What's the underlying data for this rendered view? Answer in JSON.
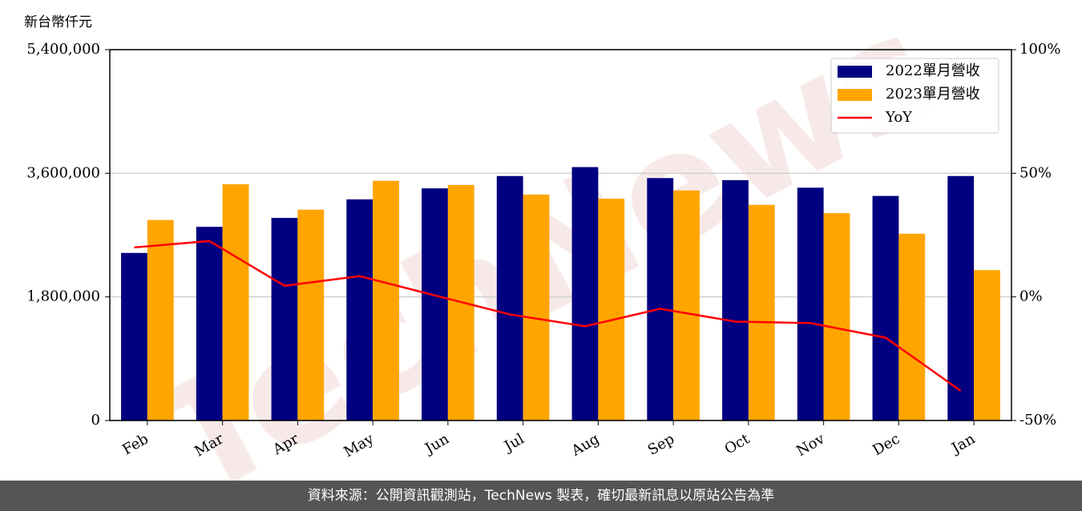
{
  "chart_data": {
    "type": "bar_line",
    "y_unit_label": "新台幣仟元",
    "watermark": "TechNews",
    "categories": [
      "Feb",
      "Mar",
      "Apr",
      "May",
      "Jun",
      "Jul",
      "Aug",
      "Sep",
      "Oct",
      "Nov",
      "Dec",
      "Jan"
    ],
    "series": [
      {
        "name": "2022單月營收",
        "type": "bar",
        "color": "#000080",
        "values": [
          2440000,
          2820000,
          2950000,
          3220000,
          3380000,
          3560000,
          3690000,
          3530000,
          3500000,
          3390000,
          3270000,
          3560000
        ]
      },
      {
        "name": "2023單月營收",
        "type": "bar",
        "color": "#ffa500",
        "values": [
          2920000,
          3440000,
          3070000,
          3490000,
          3430000,
          3290000,
          3230000,
          3350000,
          3140000,
          3020000,
          2720000,
          2190000
        ]
      },
      {
        "name": "YoY",
        "type": "line",
        "axis": "y2",
        "color": "#ff0000",
        "values": [
          20,
          22.6,
          4.5,
          8.4,
          0.6,
          -7.1,
          -11.9,
          -4.8,
          -10,
          -10.6,
          -16.5,
          -38
        ]
      }
    ],
    "ylim": [
      0,
      5400000
    ],
    "yticks": [
      0,
      {
        "value": 1800000,
        "label": "1,800,000"
      },
      {
        "value": 3600000,
        "label": "3,600,000"
      },
      {
        "value": 5400000,
        "label": "5,400,000"
      }
    ],
    "y2lim": [
      -50,
      100
    ],
    "y2ticks": [
      {
        "value": -50,
        "label": "-50%"
      },
      {
        "value": 0,
        "label": "0%"
      },
      {
        "value": 50,
        "label": "50%"
      },
      {
        "value": 100,
        "label": "100%"
      }
    ],
    "grid": true,
    "legend": "upper right",
    "footer": "資料來源：公開資訊觀測站，TechNews 製表，確切最新訊息以原站公告為準"
  }
}
